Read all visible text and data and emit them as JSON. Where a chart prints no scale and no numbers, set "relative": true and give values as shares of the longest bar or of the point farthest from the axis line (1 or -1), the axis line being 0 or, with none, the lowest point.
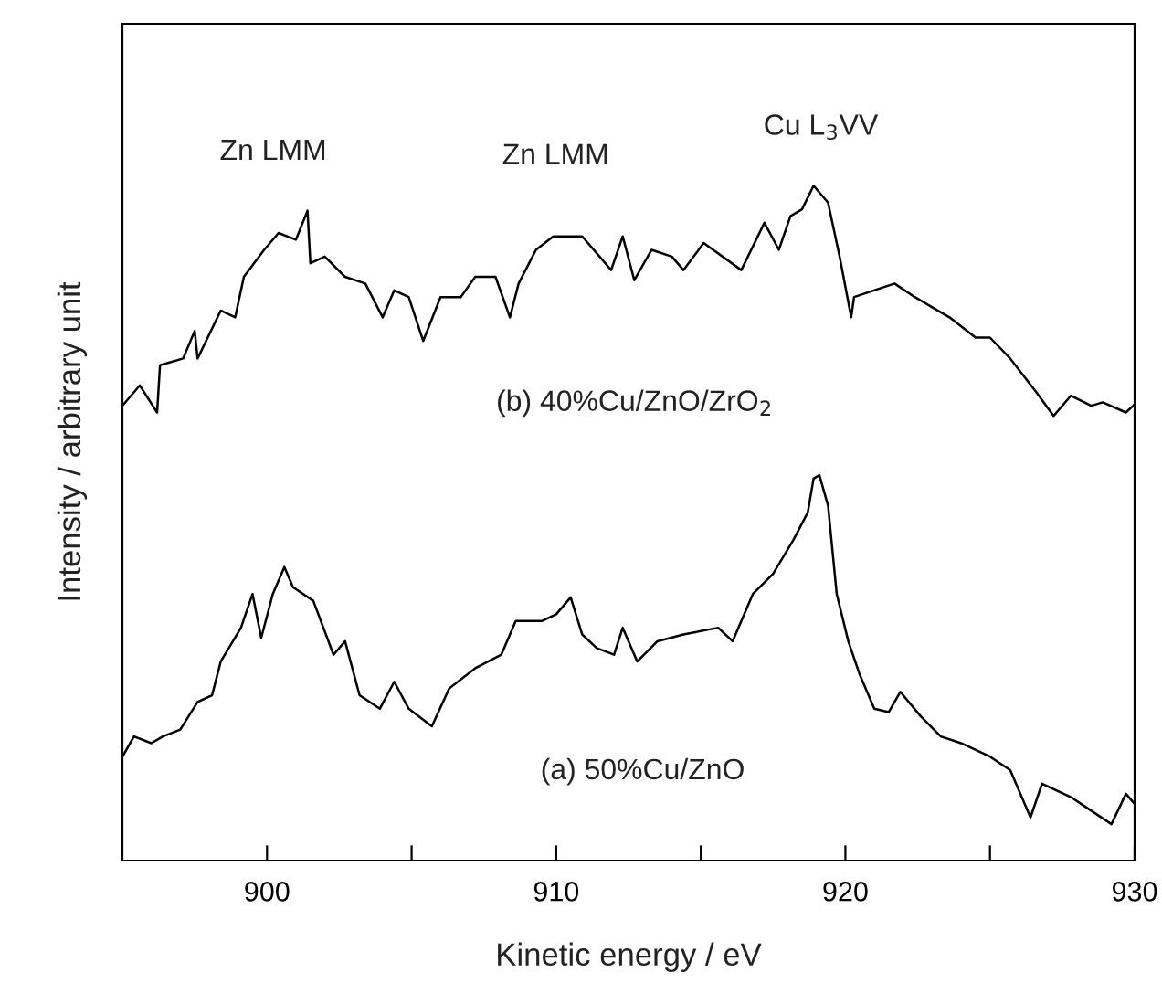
{
  "chart_data": {
    "type": "line",
    "relative": true,
    "xlabel": "Kinetic energy / eV",
    "ylabel": "Intensity / arbitrary unit",
    "xlim": [
      895,
      930
    ],
    "xticks": [
      900,
      {
        "value": 905,
        "label": null
      },
      910,
      {
        "value": 915,
        "label": null
      },
      920,
      {
        "value": 925,
        "label": null
      },
      930
    ],
    "grid": false,
    "legend": false,
    "marker": "none",
    "line_style": "solid",
    "series": [
      {
        "color": "#000000",
        "x": [
          895.0,
          895.6,
          896.2,
          896.3,
          897.1,
          897.5,
          897.6,
          898.4,
          898.9,
          899.2,
          899.9,
          900.4,
          901.0,
          901.4,
          901.5,
          902.0,
          902.7,
          903.4,
          904.0,
          904.4,
          904.9,
          905.4,
          906.0,
          906.7,
          907.2,
          907.9,
          908.4,
          908.7,
          909.3,
          909.9,
          910.9,
          911.9,
          912.3,
          912.7,
          913.3,
          914.0,
          914.4,
          915.1,
          916.4,
          917.2,
          917.7,
          918.1,
          918.5,
          918.9,
          919.4,
          919.8,
          920.2,
          920.3,
          921.7,
          922.4,
          923.6,
          924.5,
          925.0,
          925.7,
          926.6,
          927.2,
          927.8,
          928.5,
          928.9,
          929.7,
          930.0
        ],
        "values": [
          0.674,
          0.704,
          0.664,
          0.734,
          0.744,
          0.785,
          0.744,
          0.815,
          0.805,
          0.865,
          0.905,
          0.93,
          0.92,
          0.963,
          0.885,
          0.895,
          0.865,
          0.855,
          0.805,
          0.845,
          0.835,
          0.77,
          0.835,
          0.835,
          0.865,
          0.865,
          0.805,
          0.855,
          0.905,
          0.925,
          0.925,
          0.875,
          0.925,
          0.86,
          0.905,
          0.895,
          0.875,
          0.915,
          0.875,
          0.945,
          0.905,
          0.955,
          0.965,
          1,
          0.975,
          0.895,
          0.805,
          0.835,
          0.855,
          0.835,
          0.805,
          0.775,
          0.775,
          0.744,
          0.694,
          0.659,
          0.689,
          0.674,
          0.679,
          0.664,
          0.676
        ]
      },
      {
        "color": "#000000",
        "x": [
          895.0,
          895.4,
          896.0,
          896.4,
          897.0,
          897.6,
          898.1,
          898.4,
          899.1,
          899.5,
          899.8,
          900.2,
          900.6,
          900.9,
          901.6,
          902.3,
          902.7,
          903.2,
          903.9,
          904.4,
          904.9,
          905.7,
          906.3,
          907.2,
          908.1,
          908.6,
          909.5,
          910.0,
          910.5,
          910.9,
          911.4,
          912.0,
          912.3,
          912.8,
          913.5,
          914.4,
          915.6,
          916.1,
          916.8,
          917.5,
          918.2,
          918.7,
          918.9,
          919.1,
          919.4,
          919.7,
          920.1,
          920.5,
          921.0,
          921.5,
          921.9,
          922.6,
          923.3,
          924.0,
          925.0,
          925.7,
          926.4,
          926.8,
          927.8,
          928.5,
          929.2,
          929.7,
          930.0
        ],
        "values": [
          0.154,
          0.184,
          0.174,
          0.184,
          0.194,
          0.235,
          0.245,
          0.295,
          0.345,
          0.395,
          0.33,
          0.395,
          0.435,
          0.405,
          0.385,
          0.305,
          0.325,
          0.245,
          0.225,
          0.265,
          0.225,
          0.199,
          0.255,
          0.285,
          0.305,
          0.355,
          0.355,
          0.365,
          0.39,
          0.335,
          0.315,
          0.305,
          0.345,
          0.295,
          0.325,
          0.335,
          0.345,
          0.325,
          0.395,
          0.425,
          0.475,
          0.516,
          0.566,
          0.571,
          0.526,
          0.395,
          0.325,
          0.275,
          0.225,
          0.22,
          0.25,
          0.214,
          0.184,
          0.174,
          0.154,
          0.134,
          0.064,
          0.114,
          0.094,
          0.074,
          0.054,
          0.099,
          0.084
        ]
      }
    ],
    "annotations": [
      "Zn LMM",
      "Zn LMM",
      "Cu L$_{3}$VV",
      "(b) 40%Cu/ZnO/ZrO$_{2}$",
      "(a) 50%Cu/ZnO"
    ]
  }
}
